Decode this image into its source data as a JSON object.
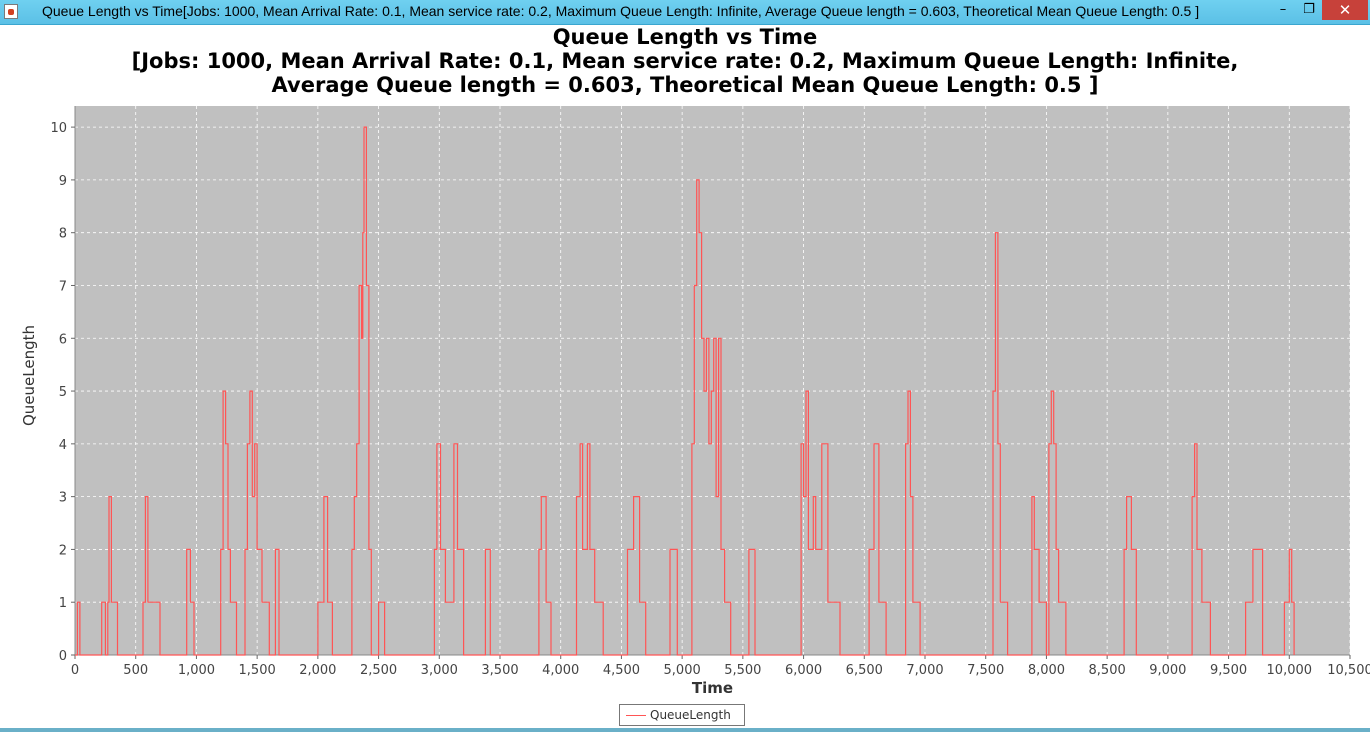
{
  "window": {
    "title": "Queue Length vs Time[Jobs: 1000, Mean Arrival Rate: 0.1, Mean service rate: 0.2, Maximum Queue Length: Infinite, Average Queue length = 0.603, Theoretical Mean Queue Length: 0.5 ]",
    "minimize_glyph": "–",
    "maximize_glyph": "❐",
    "close_glyph": "✕"
  },
  "chart_data": {
    "type": "line",
    "title_lines": [
      "Queue Length vs Time",
      "[Jobs: 1000, Mean Arrival Rate: 0.1, Mean service rate: 0.2, Maximum Queue Length: Infinite,",
      "Average Queue length = 0.603, Theoretical Mean Queue Length: 0.5 ]"
    ],
    "xlabel": "Time",
    "ylabel": "QueueLength",
    "xlim": [
      0,
      10500
    ],
    "ylim": [
      0,
      10.4
    ],
    "x_ticks": [
      "0",
      "500",
      "1,000",
      "1,500",
      "2,000",
      "2,500",
      "3,000",
      "3,500",
      "4,000",
      "4,500",
      "5,000",
      "5,500",
      "6,000",
      "6,500",
      "7,000",
      "7,500",
      "8,000",
      "8,500",
      "9,000",
      "9,500",
      "10,000",
      "10,500"
    ],
    "y_ticks": [
      "0",
      "1",
      "2",
      "3",
      "4",
      "5",
      "6",
      "7",
      "8",
      "9",
      "10"
    ],
    "grid": true,
    "legend_position": "bottom-center",
    "series": [
      {
        "name": "QueueLength",
        "color": "#ff5555",
        "points": [
          [
            0,
            0
          ],
          [
            20,
            1
          ],
          [
            40,
            0
          ],
          [
            220,
            1
          ],
          [
            250,
            0
          ],
          [
            270,
            1
          ],
          [
            280,
            3
          ],
          [
            300,
            1
          ],
          [
            330,
            1
          ],
          [
            350,
            0
          ],
          [
            560,
            1
          ],
          [
            580,
            3
          ],
          [
            600,
            1
          ],
          [
            640,
            1
          ],
          [
            700,
            0
          ],
          [
            920,
            2
          ],
          [
            950,
            1
          ],
          [
            980,
            0
          ],
          [
            1200,
            2
          ],
          [
            1220,
            5
          ],
          [
            1240,
            4
          ],
          [
            1260,
            2
          ],
          [
            1280,
            1
          ],
          [
            1330,
            0
          ],
          [
            1400,
            2
          ],
          [
            1420,
            4
          ],
          [
            1440,
            5
          ],
          [
            1460,
            3
          ],
          [
            1480,
            4
          ],
          [
            1500,
            2
          ],
          [
            1540,
            1
          ],
          [
            1600,
            0
          ],
          [
            1650,
            2
          ],
          [
            1680,
            0
          ],
          [
            2000,
            1
          ],
          [
            2050,
            3
          ],
          [
            2080,
            1
          ],
          [
            2120,
            0
          ],
          [
            2280,
            2
          ],
          [
            2300,
            3
          ],
          [
            2320,
            4
          ],
          [
            2340,
            7
          ],
          [
            2360,
            6
          ],
          [
            2370,
            8
          ],
          [
            2380,
            10
          ],
          [
            2400,
            7
          ],
          [
            2420,
            2
          ],
          [
            2440,
            0
          ],
          [
            2500,
            1
          ],
          [
            2550,
            0
          ],
          [
            2960,
            2
          ],
          [
            2980,
            4
          ],
          [
            3010,
            2
          ],
          [
            3050,
            1
          ],
          [
            3120,
            4
          ],
          [
            3150,
            2
          ],
          [
            3200,
            0
          ],
          [
            3380,
            2
          ],
          [
            3420,
            0
          ],
          [
            3820,
            2
          ],
          [
            3840,
            3
          ],
          [
            3880,
            1
          ],
          [
            3920,
            0
          ],
          [
            4130,
            3
          ],
          [
            4160,
            4
          ],
          [
            4180,
            2
          ],
          [
            4220,
            4
          ],
          [
            4240,
            2
          ],
          [
            4280,
            1
          ],
          [
            4350,
            0
          ],
          [
            4550,
            2
          ],
          [
            4600,
            3
          ],
          [
            4650,
            1
          ],
          [
            4700,
            0
          ],
          [
            4900,
            2
          ],
          [
            4960,
            0
          ],
          [
            5080,
            4
          ],
          [
            5100,
            7
          ],
          [
            5120,
            9
          ],
          [
            5140,
            8
          ],
          [
            5160,
            6
          ],
          [
            5180,
            5
          ],
          [
            5200,
            6
          ],
          [
            5220,
            4
          ],
          [
            5240,
            5
          ],
          [
            5260,
            6
          ],
          [
            5280,
            3
          ],
          [
            5300,
            6
          ],
          [
            5320,
            2
          ],
          [
            5350,
            1
          ],
          [
            5400,
            0
          ],
          [
            5550,
            2
          ],
          [
            5600,
            0
          ],
          [
            5980,
            4
          ],
          [
            6000,
            3
          ],
          [
            6020,
            5
          ],
          [
            6040,
            2
          ],
          [
            6080,
            3
          ],
          [
            6100,
            2
          ],
          [
            6150,
            4
          ],
          [
            6200,
            1
          ],
          [
            6300,
            0
          ],
          [
            6540,
            2
          ],
          [
            6580,
            4
          ],
          [
            6620,
            1
          ],
          [
            6680,
            0
          ],
          [
            6840,
            4
          ],
          [
            6860,
            5
          ],
          [
            6880,
            3
          ],
          [
            6900,
            1
          ],
          [
            6960,
            0
          ],
          [
            7560,
            5
          ],
          [
            7580,
            8
          ],
          [
            7600,
            4
          ],
          [
            7620,
            1
          ],
          [
            7680,
            0
          ],
          [
            7880,
            3
          ],
          [
            7900,
            2
          ],
          [
            7940,
            1
          ],
          [
            8000,
            0
          ],
          [
            8020,
            4
          ],
          [
            8040,
            5
          ],
          [
            8060,
            4
          ],
          [
            8080,
            2
          ],
          [
            8100,
            1
          ],
          [
            8160,
            0
          ],
          [
            8640,
            2
          ],
          [
            8660,
            3
          ],
          [
            8700,
            2
          ],
          [
            8740,
            0
          ],
          [
            9200,
            3
          ],
          [
            9220,
            4
          ],
          [
            9240,
            2
          ],
          [
            9280,
            1
          ],
          [
            9350,
            0
          ],
          [
            9640,
            1
          ],
          [
            9700,
            2
          ],
          [
            9780,
            0
          ],
          [
            9960,
            1
          ],
          [
            10000,
            2
          ],
          [
            10020,
            1
          ],
          [
            10040,
            0
          ]
        ]
      }
    ]
  },
  "legend": {
    "label": "QueueLength",
    "color": "#ff5555"
  }
}
